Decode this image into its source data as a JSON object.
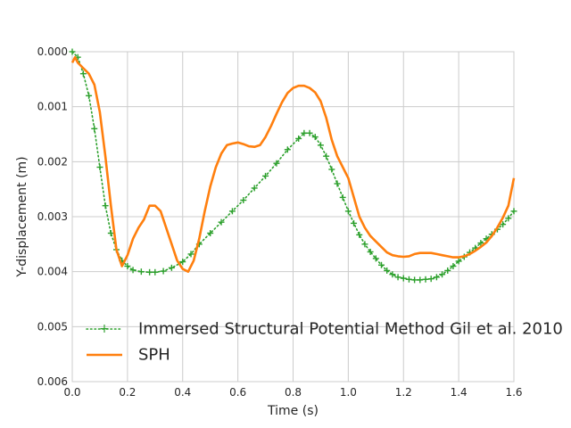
{
  "chart_data": {
    "type": "line",
    "title": "",
    "xlabel": "Time (s)",
    "ylabel": "Y-displacement (m)",
    "xlim": [
      0,
      1.6
    ],
    "ylim": [
      0.006,
      0.0
    ],
    "y_axis_inverted": true,
    "grid": true,
    "legend_placement": "lower-left",
    "x_ticks": [
      "0.0",
      "0.2",
      "0.4",
      "0.6",
      "0.8",
      "1.0",
      "1.2",
      "1.4",
      "1.6"
    ],
    "y_ticks": [
      "0.000",
      "0.001",
      "0.002",
      "0.003",
      "0.004",
      "0.005",
      "0.006"
    ],
    "series": [
      {
        "name": "Immersed Structural Potential Method Gil et al. 2010",
        "color": "#2ca02c",
        "style": "dotted-plus",
        "x": [
          0.0,
          0.02,
          0.04,
          0.06,
          0.08,
          0.1,
          0.12,
          0.14,
          0.16,
          0.18,
          0.2,
          0.22,
          0.25,
          0.28,
          0.3,
          0.33,
          0.36,
          0.4,
          0.43,
          0.46,
          0.5,
          0.54,
          0.58,
          0.62,
          0.66,
          0.7,
          0.74,
          0.78,
          0.82,
          0.84,
          0.86,
          0.88,
          0.9,
          0.92,
          0.94,
          0.96,
          0.98,
          1.0,
          1.02,
          1.04,
          1.06,
          1.08,
          1.1,
          1.12,
          1.14,
          1.16,
          1.18,
          1.2,
          1.22,
          1.24,
          1.26,
          1.28,
          1.3,
          1.32,
          1.34,
          1.36,
          1.38,
          1.4,
          1.42,
          1.44,
          1.46,
          1.48,
          1.5,
          1.52,
          1.54,
          1.56,
          1.58,
          1.6
        ],
        "values": [
          0.0,
          0.0001,
          0.0004,
          0.0008,
          0.0014,
          0.0021,
          0.0028,
          0.0033,
          0.0036,
          0.0038,
          0.0039,
          0.00397,
          0.004,
          0.00401,
          0.00401,
          0.00399,
          0.00393,
          0.00382,
          0.00368,
          0.0035,
          0.0033,
          0.0031,
          0.0029,
          0.0027,
          0.00248,
          0.00226,
          0.00203,
          0.00178,
          0.00158,
          0.00148,
          0.00148,
          0.00155,
          0.0017,
          0.0019,
          0.00214,
          0.0024,
          0.00265,
          0.0029,
          0.00312,
          0.00333,
          0.0035,
          0.00364,
          0.00376,
          0.00388,
          0.00398,
          0.00405,
          0.0041,
          0.00412,
          0.00414,
          0.00415,
          0.00415,
          0.00414,
          0.00413,
          0.0041,
          0.00405,
          0.00398,
          0.0039,
          0.00381,
          0.00373,
          0.00365,
          0.00357,
          0.00348,
          0.0034,
          0.00332,
          0.00323,
          0.00314,
          0.00303,
          0.0029
        ]
      },
      {
        "name": "SPH",
        "color": "#ff7f0e",
        "style": "solid",
        "x": [
          0.0,
          0.01,
          0.02,
          0.04,
          0.06,
          0.08,
          0.1,
          0.12,
          0.14,
          0.16,
          0.18,
          0.2,
          0.22,
          0.24,
          0.26,
          0.28,
          0.3,
          0.32,
          0.34,
          0.36,
          0.38,
          0.4,
          0.42,
          0.44,
          0.46,
          0.48,
          0.5,
          0.52,
          0.54,
          0.56,
          0.58,
          0.6,
          0.62,
          0.64,
          0.66,
          0.68,
          0.7,
          0.72,
          0.74,
          0.76,
          0.78,
          0.8,
          0.82,
          0.84,
          0.86,
          0.88,
          0.9,
          0.92,
          0.94,
          0.96,
          0.98,
          1.0,
          1.02,
          1.04,
          1.06,
          1.08,
          1.1,
          1.12,
          1.14,
          1.16,
          1.18,
          1.2,
          1.22,
          1.24,
          1.26,
          1.28,
          1.3,
          1.32,
          1.34,
          1.36,
          1.38,
          1.4,
          1.42,
          1.44,
          1.46,
          1.48,
          1.5,
          1.52,
          1.54,
          1.56,
          1.58,
          1.6
        ],
        "values": [
          0.0002,
          0.0001,
          0.0002,
          0.0003,
          0.0004,
          0.0006,
          0.0011,
          0.0019,
          0.0028,
          0.0036,
          0.0039,
          0.0037,
          0.0034,
          0.0032,
          0.00305,
          0.0028,
          0.0028,
          0.0029,
          0.0032,
          0.0035,
          0.0038,
          0.00395,
          0.004,
          0.0038,
          0.0034,
          0.0029,
          0.00245,
          0.0021,
          0.00185,
          0.0017,
          0.00167,
          0.00165,
          0.00168,
          0.00172,
          0.00173,
          0.0017,
          0.00155,
          0.00135,
          0.00113,
          0.00092,
          0.00075,
          0.00066,
          0.00062,
          0.00062,
          0.00066,
          0.00074,
          0.0009,
          0.0012,
          0.0016,
          0.0019,
          0.0021,
          0.0023,
          0.00265,
          0.003,
          0.0032,
          0.00335,
          0.00345,
          0.00355,
          0.00365,
          0.0037,
          0.00372,
          0.00373,
          0.00372,
          0.00368,
          0.00366,
          0.00366,
          0.00366,
          0.00368,
          0.0037,
          0.00372,
          0.00374,
          0.00374,
          0.00372,
          0.00368,
          0.00362,
          0.00355,
          0.00347,
          0.00335,
          0.0032,
          0.00302,
          0.0028,
          0.0023
        ]
      }
    ]
  }
}
